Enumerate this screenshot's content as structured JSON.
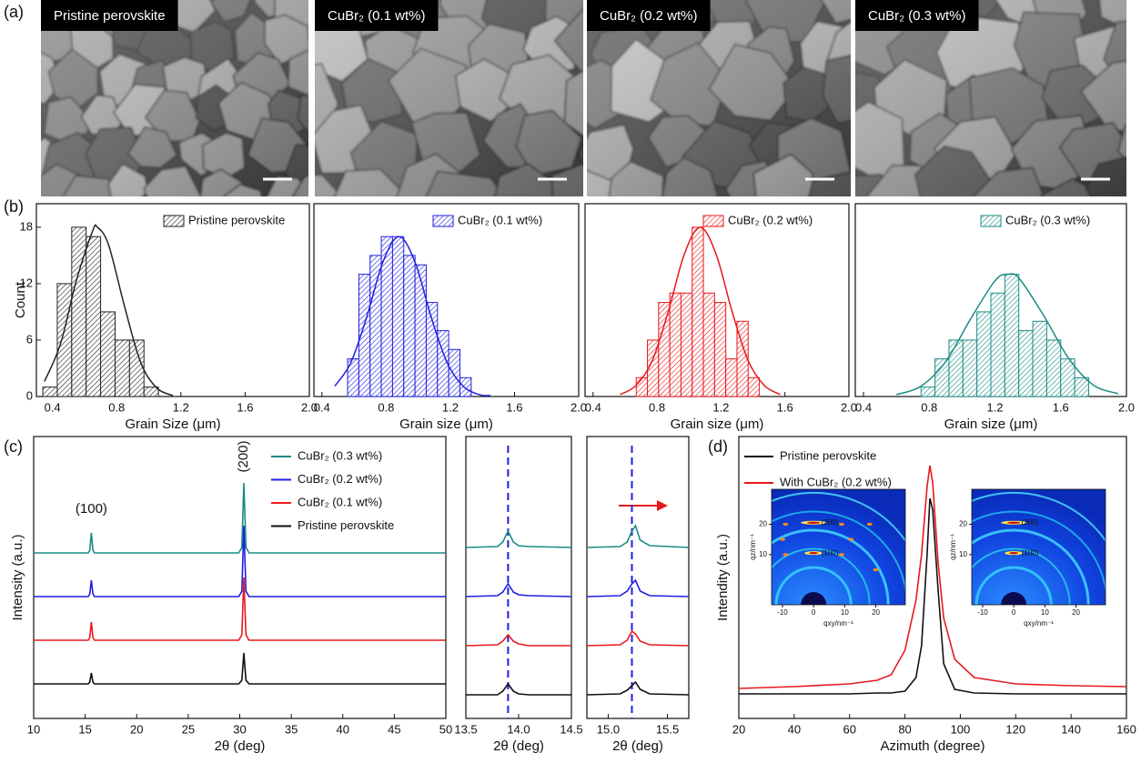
{
  "panel_labels": [
    "(a)",
    "(b)",
    "(c)",
    "(d)"
  ],
  "sem_panels": [
    {
      "label": "Pristine perovskite"
    },
    {
      "label": "CuBr₂ (0.1 wt%)"
    },
    {
      "label": "CuBr₂ (0.2 wt%)"
    },
    {
      "label": "CuBr₂ (0.3 wt%)"
    }
  ],
  "chart_data": [
    {
      "type": "histogram",
      "xlabel": "Grain Size (μm)",
      "ylabel": "Count",
      "bins": [
        0.34,
        0.43,
        0.52,
        0.61,
        0.7,
        0.79,
        0.88,
        0.97,
        1.06
      ],
      "series": [
        {
          "name": "Pristine perovskite",
          "color": "#222222",
          "values": [
            1,
            12,
            18,
            17,
            9,
            6,
            6,
            1
          ]
        }
      ],
      "fit": {
        "x": [
          0.35,
          0.45,
          0.55,
          0.65,
          0.68,
          0.75,
          0.85,
          0.95,
          1.05,
          1.15
        ],
        "values": [
          1.6,
          5.6,
          12.4,
          17.6,
          18,
          16.1,
          9.5,
          3.6,
          0.9,
          0.1
        ]
      },
      "xlim": [
        0.3,
        2.0
      ],
      "xticks": [
        0.4,
        0.8,
        1.2,
        1.6,
        {
          "value": 2.0,
          "label": "2.0"
        }
      ],
      "ylim": [
        0,
        20.5
      ],
      "yticks": [
        0,
        6,
        12,
        18
      ]
    },
    {
      "type": "histogram",
      "xlabel": "Grain size (μm)",
      "bins": [
        0.56,
        0.63,
        0.7,
        0.77,
        0.84,
        0.91,
        0.98,
        1.05,
        1.12,
        1.19,
        1.26,
        1.33
      ],
      "series": [
        {
          "name": "CuBr₂ (0.1 wt%)",
          "color": "#1f1fe0",
          "values": [
            4,
            13,
            15,
            17,
            17,
            15,
            14,
            10,
            7,
            5,
            2
          ]
        }
      ],
      "fit": {
        "x": [
          0.48,
          0.58,
          0.68,
          0.78,
          0.88,
          0.98,
          1.08,
          1.18,
          1.28,
          1.38,
          1.45
        ],
        "values": [
          1.1,
          3.6,
          8.5,
          14.3,
          17,
          14.3,
          8.5,
          3.6,
          1.1,
          0.2,
          0.1
        ]
      },
      "xlim": [
        0.35,
        2.0
      ],
      "xticks": [
        0.4,
        0.8,
        1.2,
        1.6,
        {
          "value": 2.0,
          "label": "2.0"
        }
      ],
      "ylim": [
        0,
        20.5
      ]
    },
    {
      "type": "histogram",
      "xlabel": "Grain size (μm)",
      "bins": [
        0.67,
        0.74,
        0.81,
        0.88,
        0.95,
        1.02,
        1.09,
        1.16,
        1.23,
        1.3,
        1.37,
        1.44
      ],
      "series": [
        {
          "name": "CuBr₂ (0.2 wt%)",
          "color": "#e8191c",
          "values": [
            2,
            6,
            10,
            11,
            11,
            18,
            11,
            10,
            4,
            8,
            2
          ]
        }
      ],
      "fit": {
        "x": [
          0.57,
          0.67,
          0.77,
          0.87,
          0.97,
          1.07,
          1.17,
          1.27,
          1.37,
          1.47,
          1.57
        ],
        "values": [
          0.2,
          1.2,
          3.8,
          9.0,
          15.1,
          18,
          15.1,
          9.0,
          3.8,
          1.2,
          0.2
        ]
      },
      "xlim": [
        0.35,
        2.0
      ],
      "xticks": [
        0.4,
        0.8,
        1.2,
        1.6,
        {
          "value": 2.0,
          "label": "2.0"
        }
      ],
      "ylim": [
        0,
        20.5
      ]
    },
    {
      "type": "histogram",
      "xlabel": "Grain size (μm)",
      "bins": [
        0.75,
        0.835,
        0.92,
        1.005,
        1.09,
        1.175,
        1.26,
        1.345,
        1.43,
        1.515,
        1.6,
        1.685,
        1.77
      ],
      "series": [
        {
          "name": "CuBr₂ (0.3 wt%)",
          "color": "#1a8c84",
          "values": [
            1,
            4,
            6,
            6,
            9,
            11,
            13,
            7,
            8,
            6,
            4,
            2
          ]
        }
      ],
      "fit": {
        "x": [
          0.6,
          0.75,
          0.9,
          1.05,
          1.2,
          1.28,
          1.35,
          1.5,
          1.65,
          1.8,
          1.95
        ],
        "values": [
          0.2,
          1.1,
          3.7,
          8.2,
          12.3,
          13,
          12.5,
          8.5,
          4.0,
          1.2,
          0.3
        ]
      },
      "xlim": [
        0.35,
        2.0
      ],
      "xticks": [
        0.4,
        0.8,
        1.2,
        1.6,
        {
          "value": 2.0,
          "label": "2.0"
        }
      ],
      "ylim": [
        0,
        20.5
      ]
    },
    {
      "type": "line",
      "xlabel": "2θ (deg)",
      "ylabel": "Intensity (a.u.)",
      "legend": "upper right",
      "x": [
        10,
        15.3,
        15.45,
        15.6,
        15.75,
        15.9,
        27.5,
        29.9,
        30.2,
        30.4,
        30.6,
        30.9,
        50
      ],
      "series": [
        {
          "name": "CuBr₂ (0.3 wt%)",
          "color": "#1a8c84",
          "values": [
            0,
            0,
            3,
            22,
            3,
            0,
            0,
            0,
            6,
            77,
            6,
            0,
            0
          ]
        },
        {
          "name": "CuBr₂ (0.2 wt%)",
          "color": "#1f1fe0",
          "values": [
            0,
            0,
            3,
            18,
            3,
            0,
            0,
            0,
            6,
            78,
            6,
            0,
            0
          ]
        },
        {
          "name": "CuBr₂ (0.1 wt%)",
          "color": "#e8191c",
          "values": [
            0,
            0,
            3,
            20,
            3,
            0,
            0,
            0,
            6,
            69,
            6,
            0,
            0
          ]
        },
        {
          "name": "Pristine perovskite",
          "color": "#111111",
          "values": [
            0,
            0,
            2,
            12,
            2,
            0,
            0,
            0,
            4,
            34,
            4,
            0,
            0
          ]
        }
      ],
      "annotations": [
        {
          "text": "(100)",
          "x": 15.6
        },
        {
          "text": "(200)",
          "x": 30.4
        }
      ],
      "xlim": [
        10,
        50
      ],
      "xticks": [
        10,
        15,
        20,
        25,
        30,
        35,
        40,
        45,
        50
      ],
      "ylim": [
        0,
        310
      ]
    },
    {
      "type": "line",
      "xlabel": "2θ (deg)",
      "x": [
        13.5,
        13.8,
        13.85,
        13.9,
        13.95,
        14.0,
        14.1,
        14.5
      ],
      "series": [
        {
          "color": "#1a8c84",
          "values": [
            0,
            1,
            6,
            18,
            6,
            2,
            1,
            0
          ]
        },
        {
          "color": "#1f1fe0",
          "values": [
            0,
            1,
            5,
            14,
            5,
            2,
            1,
            0
          ]
        },
        {
          "color": "#e8191c",
          "values": [
            0,
            1,
            5,
            12,
            5,
            2,
            0,
            0
          ]
        },
        {
          "color": "#111111",
          "values": [
            0,
            0,
            4,
            12,
            4,
            1,
            0,
            0
          ]
        }
      ],
      "vline": 13.9,
      "xlim": [
        13.5,
        14.5
      ],
      "xticks": [
        13.5,
        {
          "value": 14.0,
          "label": "14.0"
        },
        14.5
      ],
      "ylim": [
        0,
        310
      ]
    },
    {
      "type": "line",
      "xlabel": "2θ (deg)",
      "x": [
        14.82,
        15.1,
        15.16,
        15.2,
        15.23,
        15.27,
        15.35,
        15.68
      ],
      "series": [
        {
          "color": "#1a8c84",
          "values": [
            0,
            1,
            6,
            18,
            24,
            8,
            2,
            0
          ]
        },
        {
          "color": "#1f1fe0",
          "values": [
            0,
            1,
            6,
            14,
            18,
            6,
            1,
            0
          ]
        },
        {
          "color": "#e8191c",
          "values": [
            0,
            1,
            6,
            16,
            13,
            5,
            1,
            0
          ]
        },
        {
          "color": "#111111",
          "values": [
            0,
            1,
            5,
            10,
            14,
            6,
            1,
            0
          ]
        }
      ],
      "vline": 15.2,
      "xlim": [
        14.82,
        15.68
      ],
      "xticks": [
        {
          "value": 15.0,
          "label": "15.0"
        },
        15.5
      ],
      "ylim": [
        0,
        310
      ]
    },
    {
      "type": "line",
      "xlabel": "Azimuth (degree)",
      "ylabel": "Intendity (a.u.)",
      "legend": "upper left",
      "x": [
        20,
        40,
        60,
        70,
        75,
        80,
        84,
        86,
        88,
        89,
        90,
        92,
        94,
        98,
        105,
        120,
        140,
        160
      ],
      "series": [
        {
          "name": "Pristine perovskite",
          "color": "#111111",
          "values": [
            27,
            27,
            27,
            28,
            28,
            30,
            45,
            80,
            180,
            242,
            230,
            140,
            60,
            32,
            28,
            27,
            27,
            27
          ]
        },
        {
          "name": "With CuBr₂ (0.2 wt%)",
          "color": "#e8191c",
          "values": [
            33,
            35,
            38,
            42,
            48,
            75,
            130,
            180,
            255,
            278,
            260,
            170,
            110,
            65,
            45,
            38,
            36,
            35
          ]
        }
      ],
      "xlim": [
        20,
        160
      ],
      "xticks": [
        20,
        40,
        60,
        80,
        100,
        120,
        140,
        160
      ],
      "ylim": [
        0,
        310
      ],
      "insets": [
        {
          "xlabel": "qxy/nm⁻¹",
          "ylabel": "qz/nm⁻¹",
          "xlim": [
            -13.5,
            29.5
          ],
          "ylim": [
            -6.5,
            31.5
          ],
          "xticks": [
            -10,
            0,
            10,
            20
          ],
          "yticks": [
            10,
            20
          ],
          "annotations": [
            "(200)",
            "(100)"
          ]
        },
        {
          "xlabel": "qxy/nm⁻¹",
          "ylabel": "qz/nm⁻¹",
          "xlim": [
            -13.5,
            29.5
          ],
          "ylim": [
            -6.5,
            31.5
          ],
          "xticks": [
            -10,
            0,
            10,
            20
          ],
          "yticks": [
            10,
            20
          ],
          "annotations": [
            "(200)",
            "(100)"
          ]
        }
      ]
    }
  ]
}
